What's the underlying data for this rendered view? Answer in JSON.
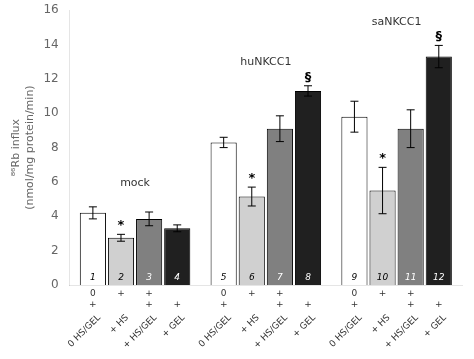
{
  "chart_data": {
    "type": "bar",
    "ylabel": "⁸⁶Rb influx\n(nmol/mg protein/min)",
    "categories": [
      "mock",
      "huNKCC1",
      "saNKCC1"
    ],
    "series": [
      {
        "name": [
          "0 HS/GEL",
          "0",
          "+"
        ],
        "color": "#ffffff",
        "values": [
          4.2,
          8.3,
          9.8
        ],
        "errors": [
          0.35,
          0.3,
          0.9
        ],
        "bar_labels": [
          "1",
          "5",
          "9"
        ]
      },
      {
        "name": [
          "+ HS",
          "+",
          null
        ],
        "color": "#d0d0d0",
        "values": [
          2.75,
          5.15,
          5.5
        ],
        "errors": [
          0.2,
          0.55,
          1.35
        ],
        "bar_labels": [
          "2",
          "6",
          "10"
        ]
      },
      {
        "name": [
          "+ HS/GEL",
          "+",
          "+"
        ],
        "color": "#808080",
        "values": [
          3.85,
          9.1,
          9.1
        ],
        "errors": [
          0.4,
          0.75,
          1.1
        ],
        "bar_labels": [
          "3",
          "7",
          "11"
        ]
      },
      {
        "name": [
          "+ GEL",
          null,
          "+"
        ],
        "color": "#202020",
        "values": [
          3.3,
          11.3,
          13.3
        ],
        "errors": [
          0.2,
          0.3,
          0.65
        ],
        "bar_labels": [
          "4",
          "8",
          "12"
        ]
      }
    ],
    "annotations": [
      {
        "text": "*",
        "bar": "2"
      },
      {
        "text": "*",
        "bar": "6"
      },
      {
        "text": "§",
        "bar": "8"
      },
      {
        "text": "*",
        "bar": "10"
      },
      {
        "text": "§",
        "bar": "12"
      }
    ],
    "edge_color": "#000000",
    "ylim": [
      0,
      16
    ],
    "yticks": [
      0,
      2,
      4,
      6,
      8,
      10,
      12,
      14,
      16
    ],
    "grid": false
  }
}
